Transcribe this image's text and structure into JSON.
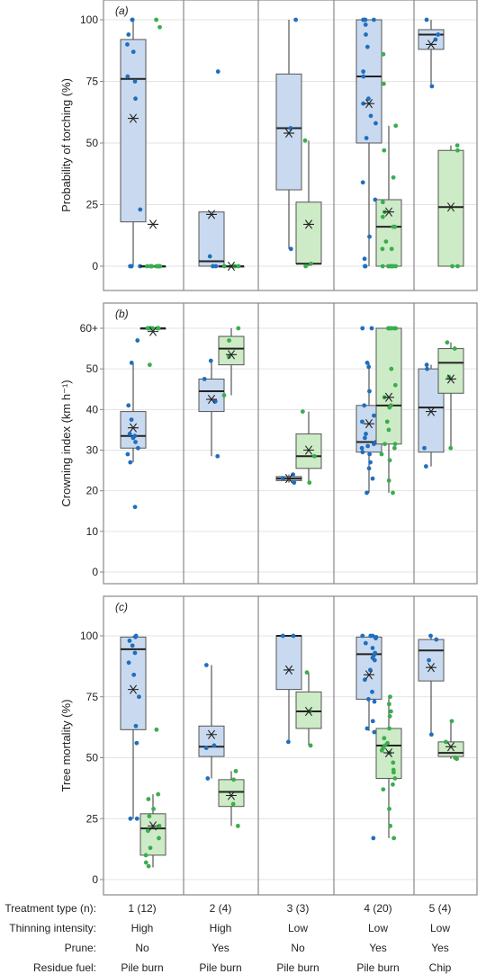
{
  "colors": {
    "blue_fill": "#c9daf0",
    "blue_point": "#1f6fbf",
    "green_fill": "#cdebc6",
    "green_point": "#3aad4e",
    "median": "#222222",
    "frame": "#888888",
    "grid": "#e3e3e3"
  },
  "treatments": [
    {
      "type": "1 (12)",
      "thinning": "High",
      "prune": "No",
      "fuel": "Pile burn"
    },
    {
      "type": "2 (4)",
      "thinning": "High",
      "prune": "Yes",
      "fuel": "Pile burn"
    },
    {
      "type": "3 (3)",
      "thinning": "Low",
      "prune": "No",
      "fuel": "Pile burn"
    },
    {
      "type": "4 (20)",
      "thinning": "Low",
      "prune": "Yes",
      "fuel": "Pile burn"
    },
    {
      "type": "5 (4)",
      "thinning": "Low",
      "prune": "Yes",
      "fuel": "Chip"
    }
  ],
  "row_labels": {
    "type": "Treatment type (n):",
    "thinning": "Thinning intensity:",
    "prune": "Prune:",
    "fuel": "Residue fuel:"
  },
  "chart_data": [
    {
      "type": "box",
      "panel_label": "(a)",
      "ylabel": "Probability of torching (%)",
      "ylim": [
        0,
        100
      ],
      "yticks": [
        "0",
        "25",
        "50",
        "75",
        "100"
      ],
      "series_colors": [
        "blue",
        "green"
      ],
      "groups": [
        {
          "treatment": "1 (12)",
          "blue": {
            "q1": 18,
            "median": 76,
            "q3": 92,
            "whisker_low": 0,
            "whisker_high": 100,
            "mean": 60,
            "points": [
              100,
              100,
              94,
              90,
              87,
              77,
              75,
              68,
              23,
              0,
              0,
              0
            ]
          },
          "green": {
            "q1": 0,
            "median": 0,
            "q3": 0,
            "whisker_low": 0,
            "whisker_high": 0,
            "mean": 17,
            "points": [
              100,
              97,
              0,
              0,
              0,
              0,
              0,
              0,
              0,
              0,
              0,
              0
            ]
          }
        },
        {
          "treatment": "2 (4)",
          "blue": {
            "q1": 0,
            "median": 2,
            "q3": 22,
            "whisker_low": 0,
            "whisker_high": 22,
            "mean": 21,
            "points": [
              79,
              4,
              0,
              0
            ]
          },
          "green": {
            "q1": 0,
            "median": 0,
            "q3": 0,
            "whisker_low": 0,
            "whisker_high": 0,
            "mean": 0,
            "points": [
              0,
              0,
              0,
              0
            ]
          }
        },
        {
          "treatment": "3 (3)",
          "blue": {
            "q1": 31,
            "median": 56,
            "q3": 78,
            "whisker_low": 7,
            "whisker_high": 100,
            "mean": 54,
            "points": [
              100,
              56,
              7
            ]
          },
          "green": {
            "q1": 1,
            "median": 1,
            "q3": 26,
            "whisker_low": 0,
            "whisker_high": 51,
            "mean": 17,
            "points": [
              51,
              1,
              0
            ]
          }
        },
        {
          "treatment": "4 (20)",
          "blue": {
            "q1": 50,
            "median": 77,
            "q3": 100,
            "whisker_low": 0,
            "whisker_high": 100,
            "mean": 66,
            "points": [
              100,
              100,
              100,
              100,
              98,
              94,
              89,
              79,
              77,
              68,
              66,
              61,
              58,
              52,
              34,
              27,
              12,
              3,
              0,
              0
            ]
          },
          "green": {
            "q1": 0,
            "median": 16,
            "q3": 27,
            "whisker_low": 0,
            "whisker_high": 57,
            "mean": 22,
            "points": [
              86,
              74,
              57,
              47,
              36,
              26,
              22,
              20,
              16,
              16,
              10,
              7,
              7,
              0,
              0,
              0,
              0,
              0,
              0,
              0
            ]
          }
        },
        {
          "treatment": "5 (4)",
          "blue": {
            "q1": 88,
            "median": 94,
            "q3": 96,
            "whisker_low": 73,
            "whisker_high": 100,
            "mean": 90,
            "points": [
              100,
              94,
              92,
              73
            ]
          },
          "green": {
            "q1": 0,
            "median": 24,
            "q3": 47,
            "whisker_low": 0,
            "whisker_high": 49,
            "mean": 24,
            "points": [
              49,
              47,
              0,
              0
            ]
          }
        }
      ]
    },
    {
      "type": "box",
      "panel_label": "(b)",
      "ylabel": "Crowning index (km h⁻¹)",
      "ylim": [
        0,
        60
      ],
      "yticks": [
        "0",
        "10",
        "20",
        "30",
        "40",
        "50",
        "60+"
      ],
      "series_colors": [
        "blue",
        "green"
      ],
      "groups": [
        {
          "treatment": "1 (12)",
          "blue": {
            "q1": 30.5,
            "median": 33.5,
            "q3": 39.5,
            "whisker_low": 27,
            "whisker_high": 51.5,
            "mean": 35.5,
            "points": [
              57,
              51.5,
              41,
              37.5,
              34,
              33.5,
              33,
              32,
              30.5,
              29,
              27,
              16
            ]
          },
          "green": {
            "q1": 60,
            "median": 60,
            "q3": 60,
            "whisker_low": 60,
            "whisker_high": 60,
            "mean": 59.2,
            "points": [
              60,
              60,
              60,
              60,
              60,
              60,
              60,
              60,
              60,
              60,
              60,
              51
            ]
          }
        },
        {
          "treatment": "2 (4)",
          "blue": {
            "q1": 39.5,
            "median": 44.5,
            "q3": 47.5,
            "whisker_low": 28.5,
            "whisker_high": 52,
            "mean": 42.5,
            "points": [
              52,
              47.5,
              42,
              28.5
            ]
          },
          "green": {
            "q1": 51,
            "median": 55,
            "q3": 58,
            "whisker_low": 43.5,
            "whisker_high": 60,
            "mean": 53.5,
            "points": [
              60,
              57,
              53,
              43.5
            ]
          }
        },
        {
          "treatment": "3 (3)",
          "blue": {
            "q1": 22.5,
            "median": 23,
            "q3": 23.5,
            "whisker_low": 22,
            "whisker_high": 24,
            "mean": 23,
            "points": [
              24,
              23,
              22
            ]
          },
          "green": {
            "q1": 25.5,
            "median": 28.5,
            "q3": 34,
            "whisker_low": 22,
            "whisker_high": 39.5,
            "mean": 30,
            "points": [
              39.5,
              28.5,
              22
            ]
          }
        },
        {
          "treatment": "4 (20)",
          "blue": {
            "q1": 29.5,
            "median": 32,
            "q3": 41,
            "whisker_low": 19.5,
            "whisker_high": 51.5,
            "mean": 36.5,
            "points": [
              60,
              60,
              51.5,
              50.5,
              44.5,
              41,
              38.5,
              37,
              34,
              33,
              32,
              31.5,
              31,
              30.5,
              29.5,
              29,
              27,
              25.5,
              23,
              19.5
            ]
          },
          "green": {
            "q1": 31.5,
            "median": 41,
            "q3": 60,
            "whisker_low": 19.5,
            "whisker_high": 60,
            "mean": 43,
            "points": [
              60,
              60,
              60,
              60,
              60,
              60,
              50,
              46,
              43,
              41,
              40.5,
              37,
              35,
              31.5,
              31.5,
              30.5,
              29,
              27.5,
              22.5,
              19.5
            ]
          }
        },
        {
          "treatment": "5 (4)",
          "blue": {
            "q1": 29.5,
            "median": 40.5,
            "q3": 50,
            "whisker_low": 26,
            "whisker_high": 51,
            "mean": 39.5,
            "points": [
              51,
              50,
              30.5,
              26
            ]
          },
          "green": {
            "q1": 44,
            "median": 51.5,
            "q3": 55,
            "whisker_low": 30.5,
            "whisker_high": 56.5,
            "mean": 47.5,
            "points": [
              56.5,
              55,
              48,
              30.5
            ]
          }
        }
      ]
    },
    {
      "type": "box",
      "panel_label": "(c)",
      "ylabel": "Tree mortality (%)",
      "ylim": [
        0,
        100
      ],
      "yticks": [
        "0",
        "25",
        "50",
        "75",
        "100"
      ],
      "series_colors": [
        "blue",
        "green"
      ],
      "groups": [
        {
          "treatment": "1 (12)",
          "blue": {
            "q1": 61.5,
            "median": 94.5,
            "q3": 99.5,
            "whisker_low": 25,
            "whisker_high": 100,
            "mean": 78,
            "points": [
              100,
              99.5,
              98,
              96,
              93,
              89,
              84,
              75,
              63,
              56,
              25,
              25
            ]
          },
          "green": {
            "q1": 10,
            "median": 21,
            "q3": 27,
            "whisker_low": 5,
            "whisker_high": 35,
            "mean": 22,
            "points": [
              61.5,
              35,
              33,
              29,
              26,
              22,
              20,
              17,
              13,
              10,
              7,
              5.5
            ]
          }
        },
        {
          "treatment": "2 (4)",
          "blue": {
            "q1": 50.5,
            "median": 54.5,
            "q3": 63,
            "whisker_low": 41.5,
            "whisker_high": 88,
            "mean": 59.5,
            "points": [
              88,
              55,
              54,
              41.5
            ]
          },
          "green": {
            "q1": 30,
            "median": 36,
            "q3": 41,
            "whisker_low": 22,
            "whisker_high": 44.5,
            "mean": 34.5,
            "points": [
              44.5,
              41,
              31,
              22
            ]
          }
        },
        {
          "treatment": "3 (3)",
          "blue": {
            "q1": 78,
            "median": 100,
            "q3": 100,
            "whisker_low": 56.5,
            "whisker_high": 100,
            "mean": 86,
            "points": [
              100,
              100,
              56.5
            ]
          },
          "green": {
            "q1": 62,
            "median": 69,
            "q3": 77,
            "whisker_low": 55,
            "whisker_high": 85,
            "mean": 69,
            "points": [
              85,
              69,
              55
            ]
          }
        },
        {
          "treatment": "4 (20)",
          "blue": {
            "q1": 74,
            "median": 92.5,
            "q3": 99.5,
            "whisker_low": 61,
            "whisker_high": 100,
            "mean": 84,
            "points": [
              100,
              100,
              100,
              99.5,
              99,
              97,
              95,
              93,
              92,
              91,
              90,
              86,
              82,
              77,
              74,
              73,
              65,
              62,
              60.5,
              17
            ]
          },
          "green": {
            "q1": 41.5,
            "median": 55,
            "q3": 62,
            "whisker_low": 17,
            "whisker_high": 75,
            "mean": 52,
            "points": [
              75,
              72,
              69,
              67,
              62,
              58,
              56,
              55,
              54,
              53,
              52,
              48,
              45,
              44,
              41.5,
              39,
              37,
              29,
              22,
              17
            ]
          }
        },
        {
          "treatment": "5 (4)",
          "blue": {
            "q1": 81.5,
            "median": 94,
            "q3": 98.5,
            "whisker_low": 59.5,
            "whisker_high": 100,
            "mean": 87,
            "points": [
              100,
              98.5,
              90,
              59.5
            ]
          },
          "green": {
            "q1": 50.5,
            "median": 52,
            "q3": 56.5,
            "whisker_low": 49.5,
            "whisker_high": 65,
            "mean": 54.5,
            "points": [
              65,
              56.5,
              50,
              49.5
            ]
          }
        }
      ]
    }
  ]
}
